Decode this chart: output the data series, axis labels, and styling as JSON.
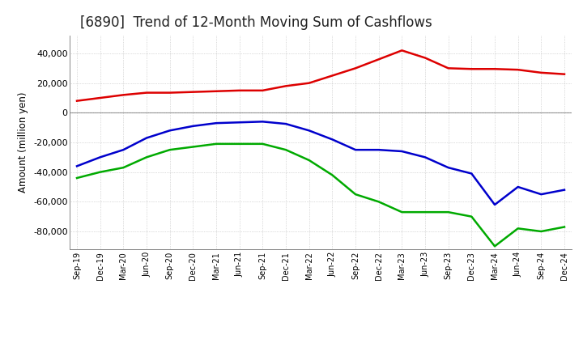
{
  "title": "[6890]  Trend of 12-Month Moving Sum of Cashflows",
  "ylabel": "Amount (million yen)",
  "background_color": "#ffffff",
  "grid_color": "#bbbbbb",
  "x_labels": [
    "Sep-19",
    "Dec-19",
    "Mar-20",
    "Jun-20",
    "Sep-20",
    "Dec-20",
    "Mar-21",
    "Jun-21",
    "Sep-21",
    "Dec-21",
    "Mar-22",
    "Jun-22",
    "Sep-22",
    "Dec-22",
    "Mar-23",
    "Jun-23",
    "Sep-23",
    "Dec-23",
    "Mar-24",
    "Jun-24",
    "Sep-24",
    "Dec-24"
  ],
  "operating": [
    8000,
    10000,
    12000,
    13500,
    13500,
    14000,
    14500,
    15000,
    15000,
    18000,
    20000,
    25000,
    30000,
    36000,
    42000,
    37000,
    30000,
    29500,
    29500,
    29000,
    27000,
    26000
  ],
  "investing": [
    -44000,
    -40000,
    -37000,
    -30000,
    -25000,
    -23000,
    -21000,
    -21000,
    -21000,
    -25000,
    -32000,
    -42000,
    -55000,
    -60000,
    -67000,
    -67000,
    -67000,
    -70000,
    -90000,
    -78000,
    -80000,
    -77000
  ],
  "free": [
    -36000,
    -30000,
    -25000,
    -17000,
    -12000,
    -9000,
    -7000,
    -6500,
    -6000,
    -7500,
    -12000,
    -18000,
    -25000,
    -25000,
    -26000,
    -30000,
    -37000,
    -41000,
    -62000,
    -50000,
    -55000,
    -52000
  ],
  "operating_color": "#dd0000",
  "investing_color": "#00aa00",
  "free_color": "#0000cc",
  "ylim": [
    -92000,
    52000
  ],
  "yticks": [
    -80000,
    -60000,
    -40000,
    -20000,
    0,
    20000,
    40000
  ],
  "linewidth": 1.8,
  "title_fontsize": 12,
  "title_color": "#222222"
}
